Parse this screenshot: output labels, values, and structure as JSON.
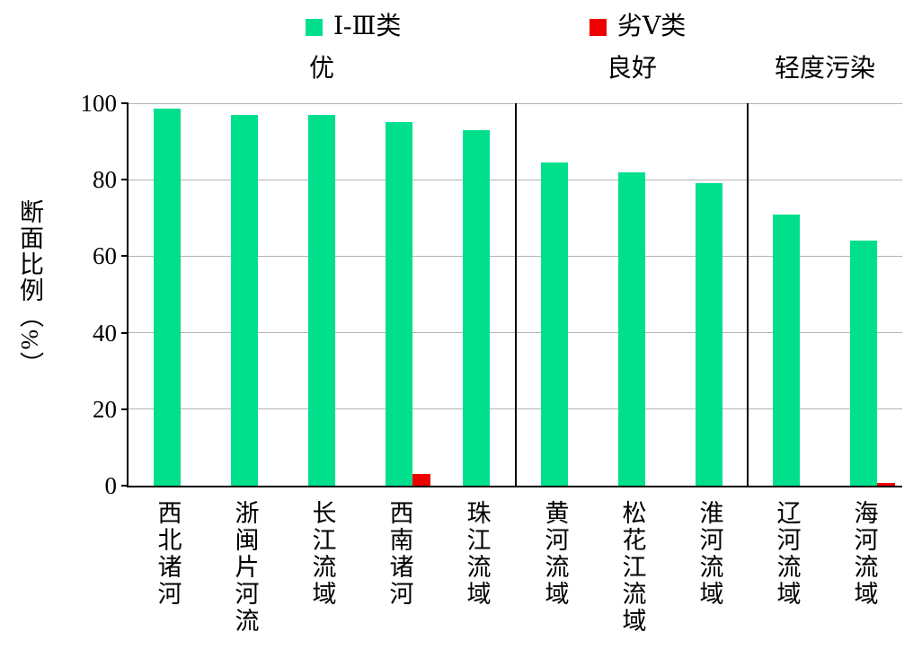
{
  "legend": {
    "items": [
      {
        "label": "Ⅰ-Ⅲ类",
        "color": "#00e08c"
      },
      {
        "label": "劣Ⅴ类",
        "color": "#ee0000"
      }
    ]
  },
  "chart_data": {
    "type": "bar",
    "title": "",
    "ylabel": "断面比例（%）",
    "xlabel": "",
    "ylim": [
      0,
      100
    ],
    "yticks": [
      0,
      20,
      40,
      60,
      80,
      100
    ],
    "grid": "horizontal",
    "legend_position": "top",
    "categories": [
      "西北诸河",
      "浙闽片河流",
      "长江流域",
      "西南诸河",
      "珠江流域",
      "黄河流域",
      "松花江流域",
      "淮河流域",
      "辽河流域",
      "海河流域"
    ],
    "series": [
      {
        "name": "Ⅰ-Ⅲ类",
        "color": "#00e08c",
        "values": [
          98.5,
          97,
          97,
          95,
          93,
          84.5,
          82,
          79,
          71,
          64
        ]
      },
      {
        "name": "劣Ⅴ类",
        "color": "#ee0000",
        "values": [
          0,
          0,
          0,
          3,
          0,
          0,
          0,
          0,
          0,
          0.8
        ]
      }
    ],
    "group_dividers_after_category": [
      5,
      8
    ],
    "group_labels": [
      {
        "label": "优",
        "from": 0,
        "to": 4
      },
      {
        "label": "良好",
        "from": 5,
        "to": 7
      },
      {
        "label": "轻度污染",
        "from": 8,
        "to": 9
      }
    ]
  }
}
